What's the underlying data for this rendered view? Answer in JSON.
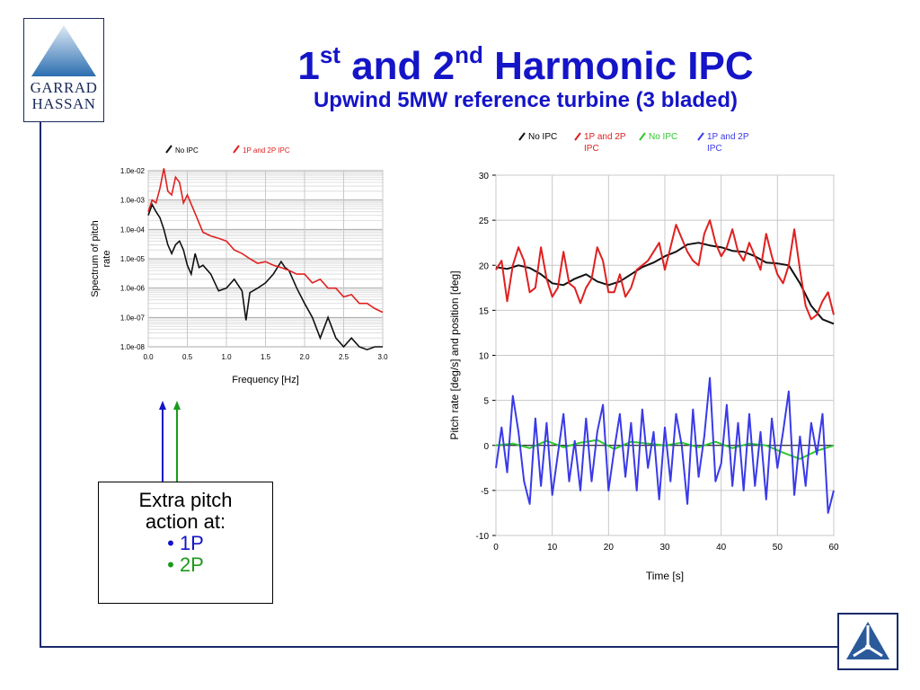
{
  "slide": {
    "title_part1": "1",
    "title_sup1": "st",
    "title_part2": " and 2",
    "title_sup2": "nd",
    "title_part3": " Harmonic IPC",
    "subtitle": "Upwind 5MW reference turbine (3 bladed)"
  },
  "logo": {
    "line1": "GARRAD",
    "line2": "HASSAN",
    "icon": "triangle-logo-icon"
  },
  "callout": {
    "line1": "Extra pitch",
    "line2": "action at:",
    "item1": "• 1P",
    "item2": "• 2P",
    "item1_color": "#1414c8",
    "item2_color": "#1a9a1a"
  },
  "colors": {
    "title": "#1414c8",
    "frame": "#1a2a6a",
    "blue": "#3a3ae8",
    "green": "#2ec82e",
    "red": "#e02020",
    "black": "#111111"
  },
  "chart_data": [
    {
      "type": "line",
      "xlabel": "Frequency [Hz]",
      "ylabel": "Spectrum of pitch rate",
      "xlim": [
        0,
        3.0
      ],
      "ylim_log10": [
        -8,
        -2
      ],
      "log_y": true,
      "grid": true,
      "xticks": [
        "0.0",
        "0.5",
        "1.0",
        "1.5",
        "2.0",
        "2.5",
        "3.0"
      ],
      "yticks": [
        "1.0e-02",
        "1.0e-03",
        "1.0e-04",
        "1.0e-05",
        "1.0e-06",
        "1.0e-07",
        "1.0e-08"
      ],
      "legend_position": "top",
      "series": [
        {
          "name": "No IPC",
          "color": "#111111",
          "x": [
            0.0,
            0.05,
            0.1,
            0.15,
            0.2,
            0.25,
            0.3,
            0.35,
            0.4,
            0.45,
            0.5,
            0.55,
            0.6,
            0.65,
            0.7,
            0.8,
            0.9,
            1.0,
            1.1,
            1.2,
            1.25,
            1.3,
            1.4,
            1.5,
            1.6,
            1.7,
            1.75,
            1.8,
            1.9,
            2.0,
            2.1,
            2.2,
            2.3,
            2.4,
            2.5,
            2.6,
            2.7,
            2.8,
            2.9,
            3.0
          ],
          "y": [
            0.0003,
            0.0007,
            0.0004,
            0.00025,
            0.0001,
            3e-05,
            1.5e-05,
            3e-05,
            4e-05,
            2e-05,
            6e-06,
            3e-06,
            1.5e-05,
            5e-06,
            6e-06,
            3e-06,
            8e-07,
            1e-06,
            2e-06,
            8e-07,
            8e-08,
            7e-07,
            1e-06,
            1.5e-06,
            3e-06,
            8e-06,
            5e-06,
            4e-06,
            1e-06,
            3e-07,
            1e-07,
            2e-08,
            1e-07,
            2e-08,
            1e-08,
            2e-08,
            1e-08,
            8e-09,
            1e-08,
            1e-08
          ]
        },
        {
          "name": "1P and 2P IPC",
          "color": "#e02020",
          "x": [
            0.0,
            0.05,
            0.1,
            0.15,
            0.2,
            0.25,
            0.3,
            0.35,
            0.4,
            0.45,
            0.5,
            0.6,
            0.7,
            0.8,
            0.9,
            1.0,
            1.1,
            1.2,
            1.3,
            1.4,
            1.5,
            1.6,
            1.7,
            1.8,
            1.9,
            2.0,
            2.1,
            2.2,
            2.3,
            2.4,
            2.5,
            2.6,
            2.7,
            2.8,
            2.9,
            3.0
          ],
          "y": [
            0.0004,
            0.001,
            0.0008,
            0.0025,
            0.012,
            0.002,
            0.0015,
            0.006,
            0.004,
            0.0008,
            0.0015,
            0.00035,
            8e-05,
            6e-05,
            5e-05,
            4e-05,
            2e-05,
            1.5e-05,
            1e-05,
            7e-06,
            8e-06,
            6e-06,
            5e-06,
            4e-06,
            3e-06,
            3e-06,
            1.5e-06,
            2e-06,
            1e-06,
            1e-06,
            5e-07,
            6e-07,
            3e-07,
            3e-07,
            2e-07,
            1.5e-07
          ]
        }
      ]
    },
    {
      "type": "line",
      "xlabel": "Time [s]",
      "ylabel": "Pitch rate [deg/s] and position [deg]",
      "xlim": [
        0,
        60
      ],
      "ylim": [
        -10,
        30
      ],
      "grid": true,
      "xticks": [
        "0",
        "10",
        "20",
        "30",
        "40",
        "50",
        "60"
      ],
      "yticks": [
        "-10",
        "-5",
        "0",
        "5",
        "10",
        "15",
        "20",
        "25",
        "30"
      ],
      "legend_position": "top",
      "series": [
        {
          "name": "No IPC",
          "color": "#111111",
          "x": [
            0,
            2,
            4,
            6,
            8,
            10,
            12,
            14,
            16,
            18,
            20,
            22,
            24,
            26,
            28,
            30,
            32,
            34,
            36,
            38,
            40,
            42,
            44,
            46,
            48,
            50,
            52,
            54,
            56,
            58,
            60
          ],
          "y": [
            19.8,
            19.6,
            20.0,
            19.7,
            19.0,
            18.0,
            17.8,
            18.5,
            19.0,
            18.2,
            17.8,
            18.2,
            19.0,
            19.8,
            20.3,
            21.0,
            21.5,
            22.3,
            22.5,
            22.2,
            22.0,
            21.6,
            21.5,
            21.0,
            20.3,
            20.2,
            20.0,
            18.0,
            15.5,
            14.0,
            13.5
          ]
        },
        {
          "name": "1P and 2P IPC",
          "color": "#e02020",
          "x": [
            0,
            1,
            2,
            3,
            4,
            5,
            6,
            7,
            8,
            9,
            10,
            11,
            12,
            13,
            14,
            15,
            16,
            17,
            18,
            19,
            20,
            21,
            22,
            23,
            24,
            25,
            26,
            27,
            28,
            29,
            30,
            31,
            32,
            33,
            34,
            35,
            36,
            37,
            38,
            39,
            40,
            41,
            42,
            43,
            44,
            45,
            46,
            47,
            48,
            49,
            50,
            51,
            52,
            53,
            54,
            55,
            56,
            57,
            58,
            59,
            60
          ],
          "y": [
            19.5,
            20.5,
            16.0,
            20.0,
            22.0,
            20.5,
            17.0,
            17.5,
            22.0,
            18.5,
            16.5,
            17.5,
            21.5,
            18.0,
            17.5,
            15.8,
            17.5,
            18.5,
            22.0,
            20.5,
            17.0,
            17.0,
            19.0,
            16.5,
            17.5,
            19.5,
            20.0,
            20.5,
            21.5,
            22.5,
            19.5,
            22.0,
            24.5,
            23.0,
            21.5,
            20.5,
            20.0,
            23.5,
            25.0,
            22.5,
            21.0,
            22.0,
            24.0,
            21.5,
            20.5,
            22.5,
            21.0,
            19.5,
            23.5,
            21.0,
            19.0,
            18.0,
            20.0,
            24.0,
            19.5,
            15.5,
            14.0,
            14.5,
            16.0,
            17.0,
            14.5
          ]
        },
        {
          "name": "No IPC",
          "color": "#2ec82e",
          "x": [
            0,
            3,
            6,
            9,
            12,
            15,
            18,
            21,
            24,
            27,
            30,
            33,
            36,
            39,
            42,
            45,
            48,
            51,
            54,
            57,
            60
          ],
          "y": [
            0.0,
            0.2,
            -0.3,
            0.5,
            -0.2,
            0.3,
            0.6,
            -0.4,
            0.4,
            0.2,
            0.0,
            0.3,
            -0.2,
            0.4,
            -0.3,
            0.2,
            0.0,
            -0.8,
            -1.5,
            -0.6,
            0.0
          ]
        },
        {
          "name": "1P and 2P IPC",
          "color": "#3a3ae8",
          "x": [
            0,
            1,
            2,
            3,
            4,
            5,
            6,
            7,
            8,
            9,
            10,
            11,
            12,
            13,
            14,
            15,
            16,
            17,
            18,
            19,
            20,
            21,
            22,
            23,
            24,
            25,
            26,
            27,
            28,
            29,
            30,
            31,
            32,
            33,
            34,
            35,
            36,
            37,
            38,
            39,
            40,
            41,
            42,
            43,
            44,
            45,
            46,
            47,
            48,
            49,
            50,
            51,
            52,
            53,
            54,
            55,
            56,
            57,
            58,
            59,
            60
          ],
          "y": [
            -2.5,
            2.0,
            -3.0,
            5.5,
            1.5,
            -4.0,
            -6.5,
            3.0,
            -4.5,
            2.5,
            -5.5,
            -1.0,
            3.5,
            -4.0,
            0.5,
            -5.0,
            3.0,
            -4.0,
            1.5,
            4.5,
            -5.0,
            -0.5,
            3.5,
            -3.5,
            2.5,
            -5.0,
            4.0,
            -2.5,
            1.5,
            -6.0,
            2.0,
            -4.0,
            3.5,
            0.0,
            -6.5,
            4.0,
            -3.5,
            1.0,
            7.5,
            -4.0,
            -2.0,
            4.5,
            -4.5,
            2.5,
            -5.0,
            3.5,
            -4.5,
            1.5,
            -6.0,
            3.0,
            -2.5,
            1.5,
            6.0,
            -5.5,
            1.0,
            -4.5,
            2.5,
            -1.0,
            3.5,
            -7.5,
            -5.0
          ]
        }
      ]
    }
  ]
}
